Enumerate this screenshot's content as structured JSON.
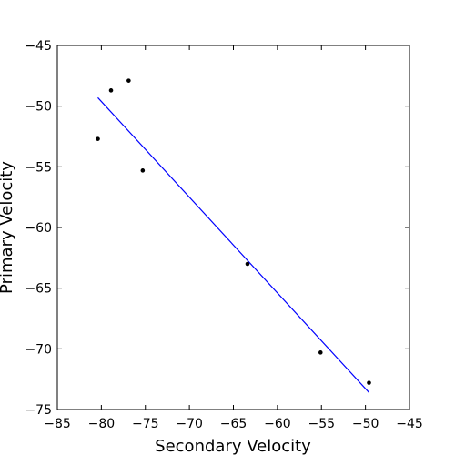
{
  "chart_data": {
    "type": "scatter",
    "title": "",
    "xlabel": "Secondary Velocity",
    "ylabel": "Primary Velocity",
    "xlim": [
      -85,
      -45
    ],
    "ylim": [
      -75,
      -45
    ],
    "xticks": [
      -85,
      -80,
      -75,
      -70,
      -65,
      -60,
      -55,
      -50,
      -45
    ],
    "yticks": [
      -45,
      -50,
      -55,
      -60,
      -65,
      -70,
      -75
    ],
    "xtick_labels": [
      "−85",
      "−80",
      "−75",
      "−70",
      "−65",
      "−60",
      "−55",
      "−50",
      "−45"
    ],
    "ytick_labels": [
      "−45",
      "−50",
      "−55",
      "−60",
      "−65",
      "−70",
      "−75"
    ],
    "grid": false,
    "series": [
      {
        "type": "scatter",
        "color": "#000000",
        "points": [
          {
            "x": -80.4,
            "y": -52.7
          },
          {
            "x": -78.9,
            "y": -48.7
          },
          {
            "x": -76.9,
            "y": -47.9
          },
          {
            "x": -75.3,
            "y": -55.3
          },
          {
            "x": -63.4,
            "y": -63.0
          },
          {
            "x": -55.1,
            "y": -70.3
          },
          {
            "x": -49.6,
            "y": -72.8
          }
        ]
      },
      {
        "type": "line",
        "color": "#0000ff",
        "points": [
          {
            "x": -80.4,
            "y": -49.3
          },
          {
            "x": -49.6,
            "y": -73.6
          }
        ]
      }
    ]
  }
}
